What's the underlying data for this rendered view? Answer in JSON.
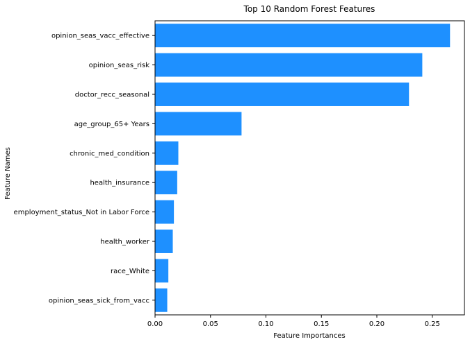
{
  "chart_data": {
    "type": "bar",
    "orientation": "horizontal",
    "title": "Top 10 Random Forest Features",
    "xlabel": "Feature Importances",
    "ylabel": "Feature Names",
    "categories": [
      "opinion_seas_vacc_effective",
      "opinion_seas_risk",
      "doctor_recc_seasonal",
      "age_group_65+ Years",
      "chronic_med_condition",
      "health_insurance",
      "employment_status_Not in Labor Force",
      "health_worker",
      "race_White",
      "opinion_seas_sick_from_vacc"
    ],
    "values": [
      0.266,
      0.241,
      0.229,
      0.078,
      0.021,
      0.02,
      0.017,
      0.016,
      0.012,
      0.011
    ],
    "xlim": [
      0,
      0.279
    ],
    "xticks": [
      0,
      0.05,
      0.1,
      0.15,
      0.2,
      0.25
    ],
    "xtick_labels": [
      "0.00",
      "0.05",
      "0.10",
      "0.15",
      "0.20",
      "0.25"
    ],
    "grid": false,
    "bar_color": "#1e90ff"
  }
}
